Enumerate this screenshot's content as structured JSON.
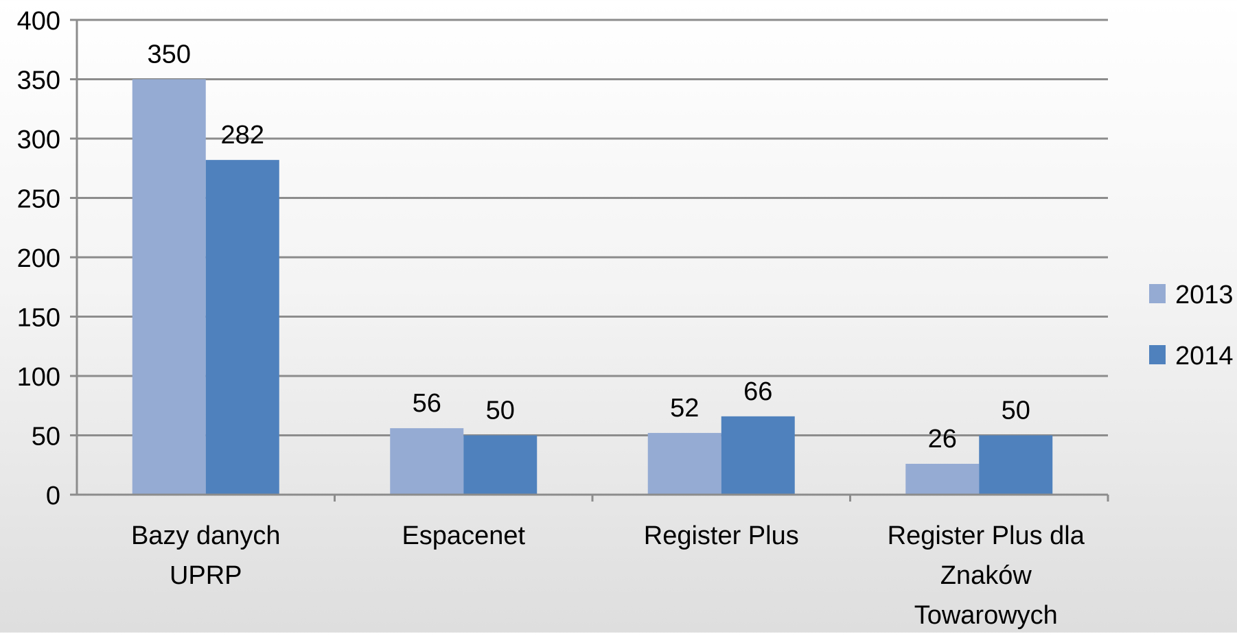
{
  "chart_data": {
    "type": "bar",
    "title": "",
    "xlabel": "",
    "ylabel": "",
    "categories": [
      [
        "Bazy danych",
        "UPRP"
      ],
      [
        "Espacenet"
      ],
      [
        "Register Plus"
      ],
      [
        "Register Plus dla",
        "Znaków",
        "Towarowych"
      ]
    ],
    "series": [
      {
        "name": "2013",
        "color": "#95abd3",
        "values": [
          350,
          56,
          52,
          26
        ]
      },
      {
        "name": "2014",
        "color": "#4f81bd",
        "values": [
          282,
          50,
          66,
          50
        ]
      }
    ],
    "ylim": [
      0,
      400
    ],
    "yticks": [
      0,
      50,
      100,
      150,
      200,
      250,
      300,
      350,
      400
    ],
    "grid": true,
    "gridColor": "#8c8c8c",
    "legend": "right"
  }
}
